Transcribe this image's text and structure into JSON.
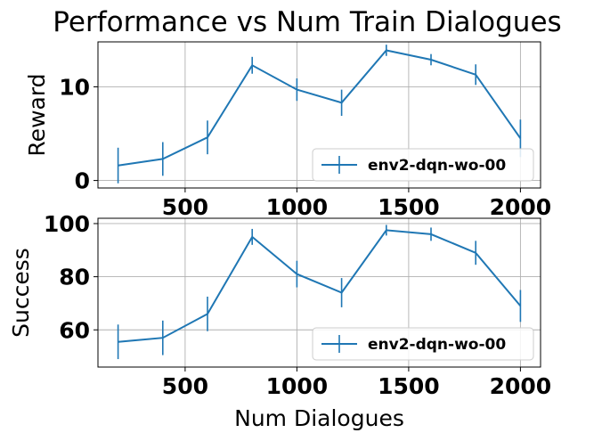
{
  "figure": {
    "title": "Performance vs Num Train Dialogues"
  },
  "chart_data": [
    {
      "type": "line",
      "ylabel": "Reward",
      "xlabel": "",
      "x": [
        200,
        400,
        600,
        800,
        1000,
        1200,
        1400,
        1600,
        1800,
        2000
      ],
      "xlim": [
        110,
        2090
      ],
      "ylim": [
        -0.8,
        14.8
      ],
      "xticks": [
        500,
        1000,
        1500,
        2000
      ],
      "yticks": [
        0,
        10
      ],
      "grid": true,
      "legend_position": "lower right",
      "series": [
        {
          "name": "env2-dqn-wo-00",
          "color": "#1f77b4",
          "values": [
            1.6,
            2.3,
            4.6,
            12.3,
            9.7,
            8.3,
            13.9,
            12.9,
            11.3,
            4.5
          ],
          "errors": [
            1.9,
            1.8,
            1.8,
            0.9,
            1.2,
            1.4,
            0.6,
            0.6,
            1.1,
            2.0
          ]
        }
      ]
    },
    {
      "type": "line",
      "ylabel": "Success",
      "xlabel": "Num Dialogues",
      "x": [
        200,
        400,
        600,
        800,
        1000,
        1200,
        1400,
        1600,
        1800,
        2000
      ],
      "xlim": [
        110,
        2090
      ],
      "ylim": [
        46,
        102
      ],
      "xticks": [
        500,
        1000,
        1500,
        2000
      ],
      "yticks": [
        60,
        80,
        100
      ],
      "grid": true,
      "legend_position": "lower right",
      "series": [
        {
          "name": "env2-dqn-wo-00",
          "color": "#1f77b4",
          "values": [
            55.5,
            57,
            66,
            95,
            81,
            74,
            97.5,
            96,
            89,
            69
          ],
          "errors": [
            6.5,
            6.5,
            6.5,
            3,
            5,
            5.5,
            2,
            2.5,
            4.5,
            6
          ]
        }
      ]
    }
  ]
}
